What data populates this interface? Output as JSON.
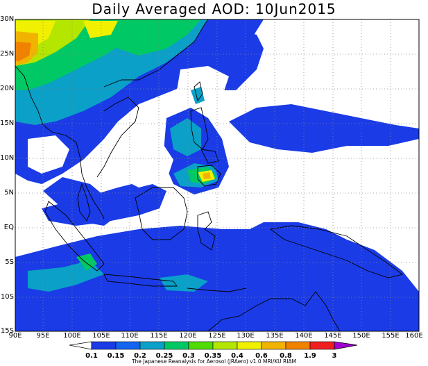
{
  "title": "Daily Averaged AOD: 10Jun2015",
  "credit": "The Japanese Reanalysis for Aerosol (JRAero) v1.0 MRI/KU RIAM",
  "axes": {
    "y_labels": [
      "30N",
      "25N",
      "20N",
      "15N",
      "10N",
      "5N",
      "EQ",
      "5S",
      "10S",
      "15S"
    ],
    "x_labels": [
      "90E",
      "95E",
      "100E",
      "105E",
      "110E",
      "115E",
      "120E",
      "125E",
      "130E",
      "135E",
      "140E",
      "145E",
      "150E",
      "155E",
      "160E"
    ]
  },
  "colorbar": {
    "labels": [
      "0.1",
      "0.15",
      "0.2",
      "0.25",
      "0.3",
      "0.35",
      "0.4",
      "0.6",
      "0.8",
      "1.9",
      "3"
    ],
    "colors": [
      "#1a3be6",
      "#1464f0",
      "#0aa0c8",
      "#00c864",
      "#50dc00",
      "#b4e600",
      "#f0f000",
      "#f0b400",
      "#f08200",
      "#f01e1e",
      "#a000d2"
    ]
  },
  "chart_data": {
    "type": "heatmap",
    "title": "Daily Averaged AOD: 10Jun2015",
    "lon_range": [
      90,
      160
    ],
    "lat_range": [
      -15,
      30
    ],
    "grid": true,
    "levels": [
      0.1,
      0.15,
      0.2,
      0.25,
      0.3,
      0.35,
      0.4,
      0.6,
      0.8,
      1.9,
      3
    ]
  },
  "colors": {
    "blue": "#1a3be6",
    "blue2": "#1464f0",
    "teal": "#0aa0c8",
    "green": "#00c864",
    "lime": "#50dc00",
    "yellowgreen": "#b4e600",
    "yellow": "#f0f000",
    "orange": "#f0b400",
    "darkorange": "#f08200"
  }
}
